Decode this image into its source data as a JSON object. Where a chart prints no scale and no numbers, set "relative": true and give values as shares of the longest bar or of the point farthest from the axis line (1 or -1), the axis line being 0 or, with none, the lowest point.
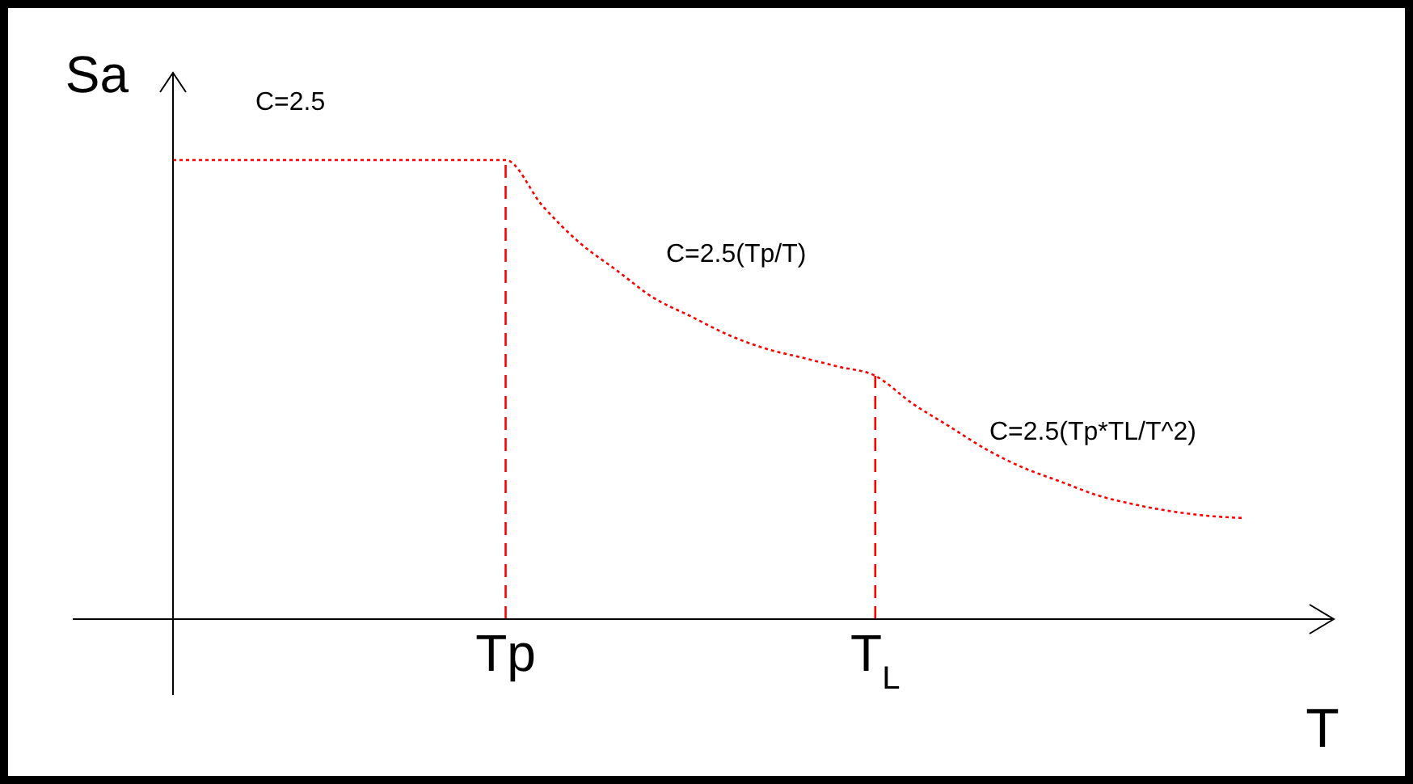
{
  "chart_data": {
    "type": "line",
    "relative": true,
    "xlabel": "T",
    "ylabel": "Sa",
    "categories": [
      null,
      null,
      null,
      null,
      null,
      null,
      null,
      null,
      null,
      "Tp",
      null,
      null,
      null,
      null,
      null,
      null,
      null,
      null,
      null,
      "T$_{L}$",
      null,
      null,
      null,
      null,
      null,
      null,
      null,
      null,
      null,
      null
    ],
    "series": [
      {
        "color": "#ff0000",
        "values": [
          1,
          1,
          1,
          1,
          1,
          1,
          1,
          1,
          1,
          1,
          0.9,
          0.82,
          0.76,
          0.7,
          0.66,
          0.62,
          0.59,
          0.57,
          0.55,
          0.53,
          0.47,
          0.42,
          0.37,
          0.33,
          0.3,
          0.27,
          0.25,
          0.235,
          0.225,
          0.22
        ]
      }
    ],
    "line_style": "dotted",
    "marker": "none",
    "ref_lines": [
      {
        "axis": "x",
        "value": "Tp",
        "color": "#ff0000",
        "line_style": "dashed"
      },
      {
        "axis": "x",
        "value": "T$_{L}$",
        "color": "#ff0000",
        "line_style": "dashed"
      }
    ],
    "annotations": [
      "C=2.5",
      "C=2.5(Tp/T)",
      "C=2.5(Tp*TL/T^2)"
    ]
  }
}
